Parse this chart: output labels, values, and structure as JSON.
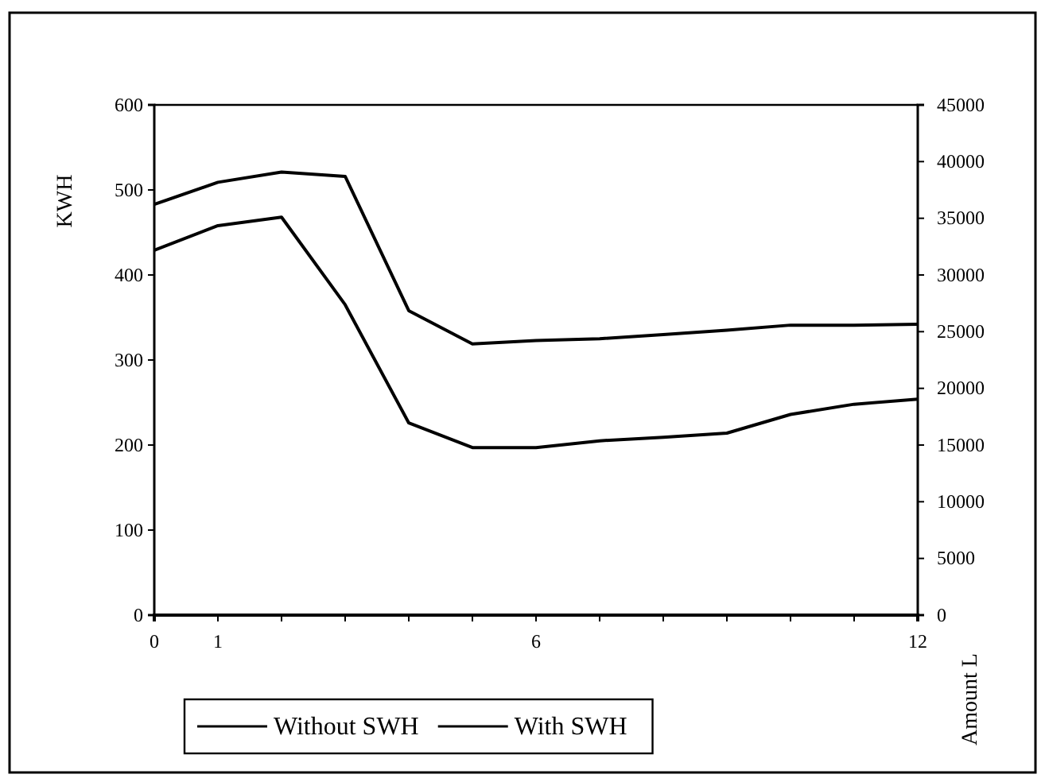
{
  "chart_data": {
    "type": "line",
    "ylabel": "KWH",
    "y2label": "Amount L",
    "x": [
      0,
      1,
      2,
      3,
      4,
      5,
      6,
      7,
      8,
      9,
      10,
      11,
      12
    ],
    "series": [
      {
        "name": "Without SWH",
        "color": "#000000",
        "values": [
          483,
          509,
          521,
          516,
          358,
          319,
          323,
          325,
          330,
          335,
          341,
          341,
          342
        ]
      },
      {
        "name": "With SWH",
        "color": "#000000",
        "values": [
          429,
          458,
          468,
          365,
          226,
          197,
          197,
          205,
          209,
          214,
          236,
          248,
          254
        ]
      }
    ],
    "xlim": [
      0,
      12
    ],
    "xticks": [
      0,
      1,
      {
        "value": 2,
        "label": null
      },
      {
        "value": 3,
        "label": null
      },
      {
        "value": 4,
        "label": null
      },
      {
        "value": 5,
        "label": null
      },
      6,
      {
        "value": 7,
        "label": null
      },
      {
        "value": 8,
        "label": null
      },
      {
        "value": 9,
        "label": null
      },
      {
        "value": 10,
        "label": null
      },
      {
        "value": 11,
        "label": null
      },
      12
    ],
    "ylim": [
      0,
      600
    ],
    "yticks": [
      0,
      100,
      200,
      300,
      400,
      500,
      600
    ],
    "y2lim": [
      0,
      45000
    ],
    "y2ticks": [
      0,
      5000,
      10000,
      15000,
      20000,
      25000,
      30000,
      35000,
      40000,
      45000
    ],
    "legend": "bottom",
    "grid": false,
    "marker": "none",
    "line_style": "solid"
  }
}
